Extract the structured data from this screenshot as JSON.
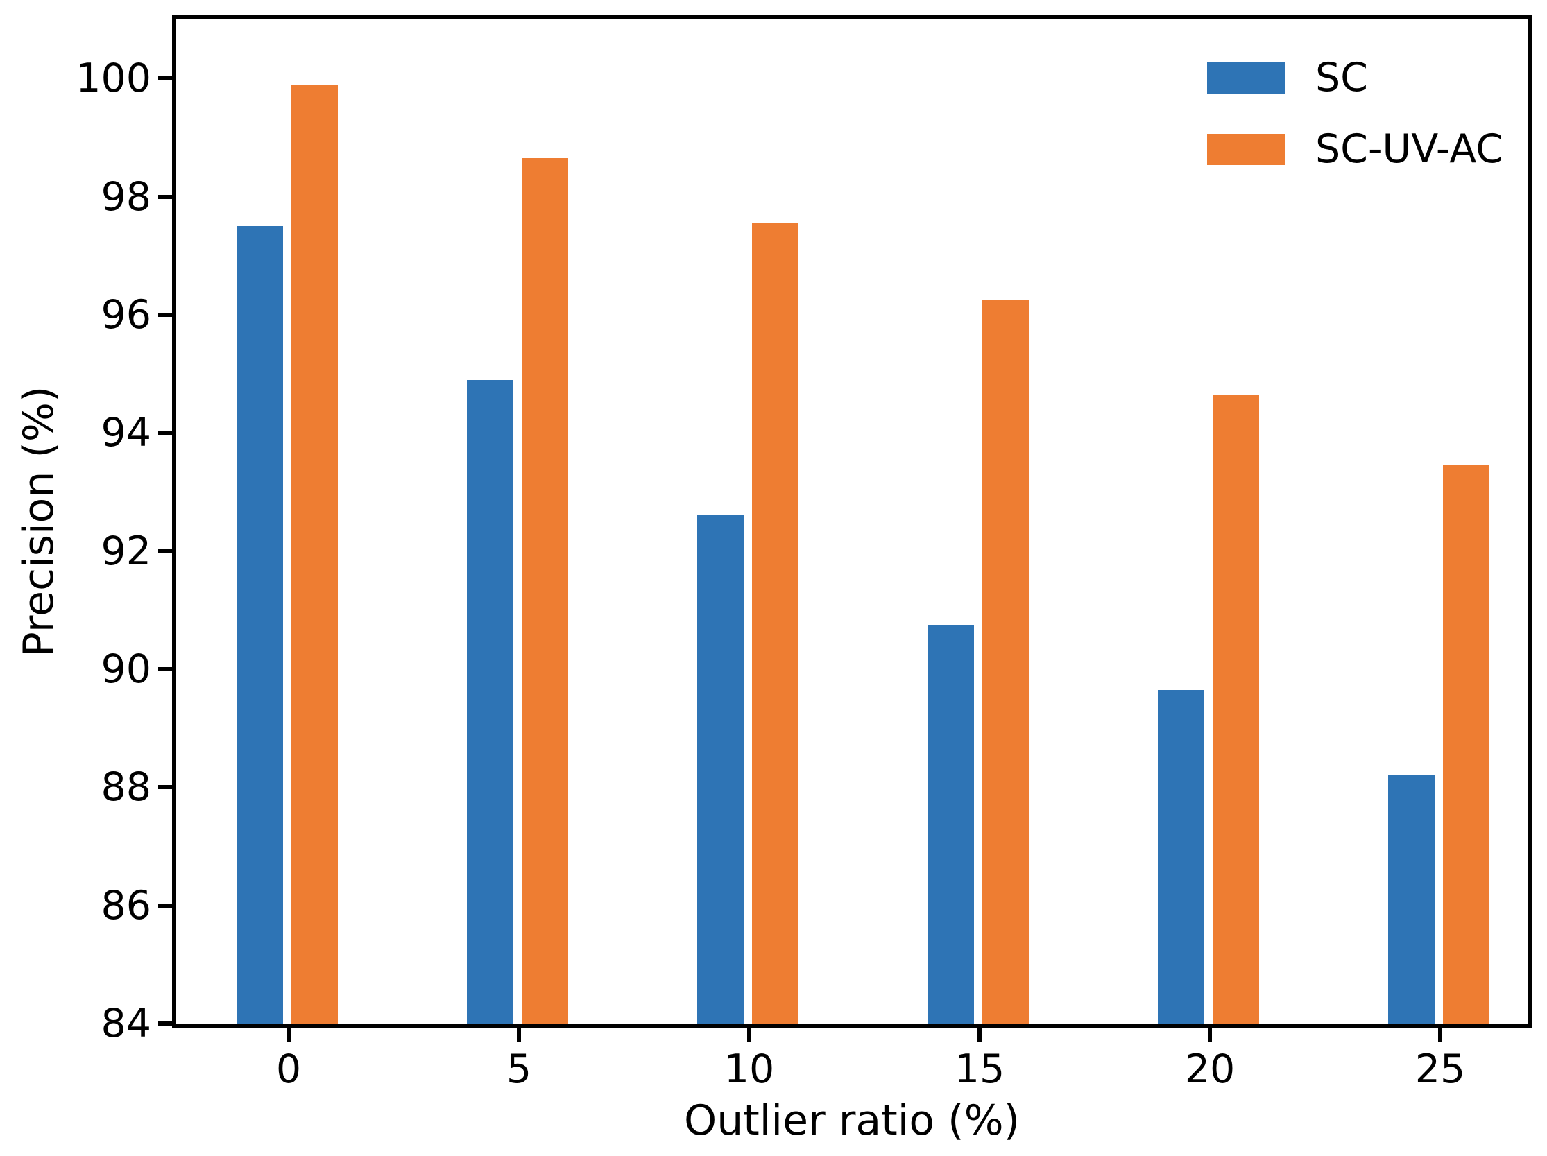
{
  "chart_data": {
    "type": "bar",
    "categories": [
      "0",
      "5",
      "10",
      "15",
      "20",
      "25"
    ],
    "series": [
      {
        "name": "SC",
        "color": "#2e74b5",
        "values": [
          97.5,
          94.9,
          92.6,
          90.75,
          89.65,
          88.2
        ]
      },
      {
        "name": "SC-UV-AC",
        "color": "#ee7d32",
        "values": [
          99.9,
          98.65,
          97.55,
          96.25,
          94.65,
          93.45
        ]
      }
    ],
    "title": "",
    "xlabel": "Outlier ratio (%)",
    "ylabel": "Precision (%)",
    "ylim": [
      84,
      101.0
    ],
    "yticks": [
      84,
      86,
      88,
      90,
      92,
      94,
      96,
      98,
      100
    ],
    "grid": false,
    "legend_position": "upper right",
    "spine_color": "#000000",
    "background_color": "#ffffff"
  }
}
